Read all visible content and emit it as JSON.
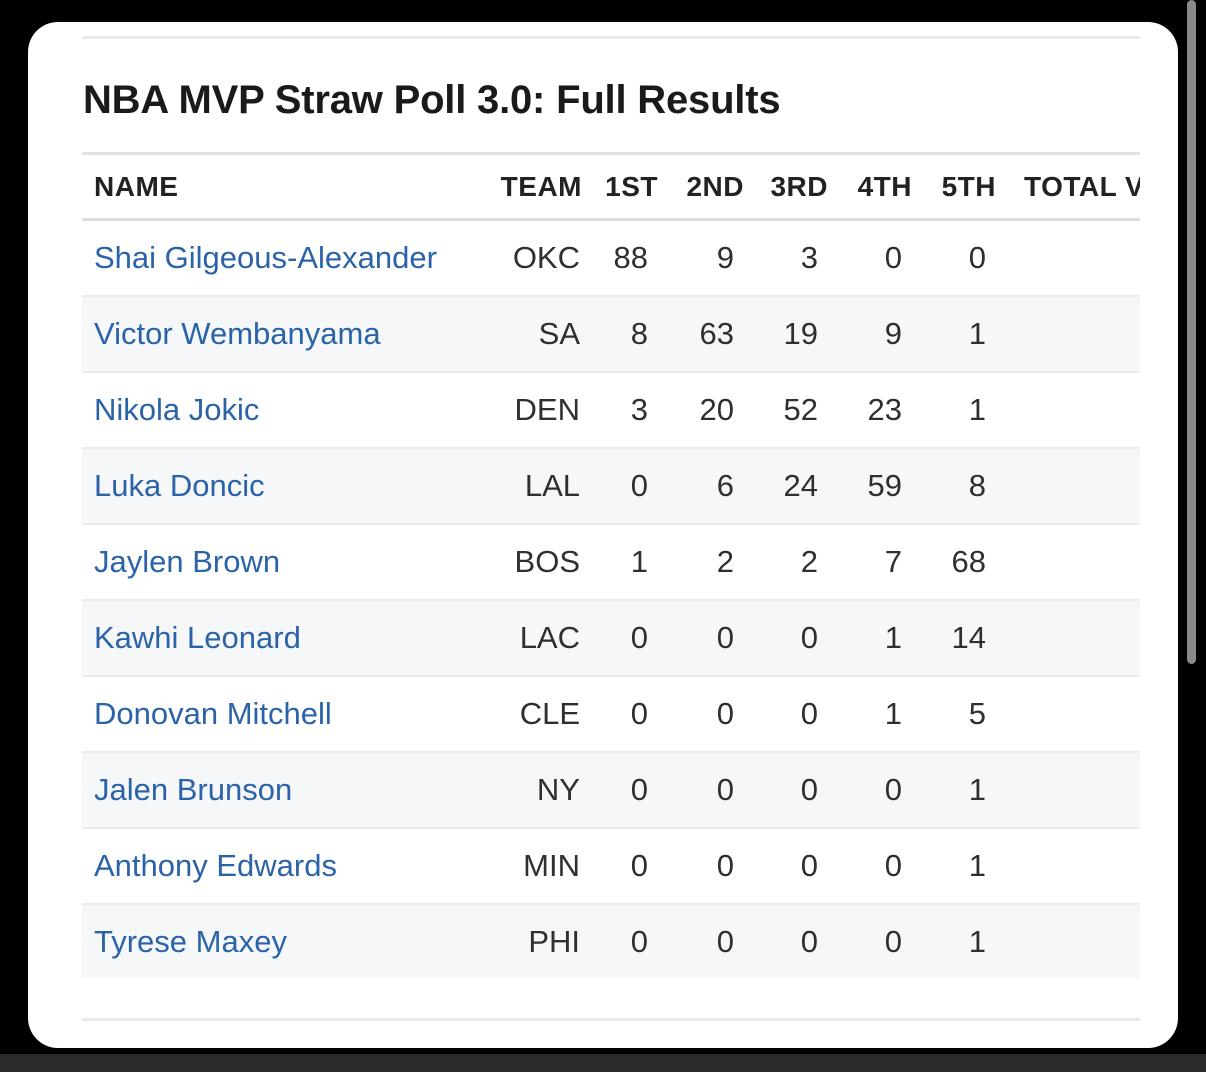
{
  "title": "NBA MVP Straw Poll 3.0: Full Results",
  "table": {
    "headers": {
      "name": "NAME",
      "team": "TEAM",
      "first": "1ST",
      "second": "2ND",
      "third": "3RD",
      "fourth": "4TH",
      "fifth": "5TH",
      "total": "TOTAL V"
    },
    "rows": [
      {
        "name": "Shai Gilgeous-Alexander",
        "team": "OKC",
        "first": "88",
        "second": "9",
        "third": "3",
        "fourth": "0",
        "fifth": "0"
      },
      {
        "name": "Victor Wembanyama",
        "team": "SA",
        "first": "8",
        "second": "63",
        "third": "19",
        "fourth": "9",
        "fifth": "1"
      },
      {
        "name": "Nikola Jokic",
        "team": "DEN",
        "first": "3",
        "second": "20",
        "third": "52",
        "fourth": "23",
        "fifth": "1"
      },
      {
        "name": "Luka Doncic",
        "team": "LAL",
        "first": "0",
        "second": "6",
        "third": "24",
        "fourth": "59",
        "fifth": "8"
      },
      {
        "name": "Jaylen Brown",
        "team": "BOS",
        "first": "1",
        "second": "2",
        "third": "2",
        "fourth": "7",
        "fifth": "68"
      },
      {
        "name": "Kawhi Leonard",
        "team": "LAC",
        "first": "0",
        "second": "0",
        "third": "0",
        "fourth": "1",
        "fifth": "14"
      },
      {
        "name": "Donovan Mitchell",
        "team": "CLE",
        "first": "0",
        "second": "0",
        "third": "0",
        "fourth": "1",
        "fifth": "5"
      },
      {
        "name": "Jalen Brunson",
        "team": "NY",
        "first": "0",
        "second": "0",
        "third": "0",
        "fourth": "0",
        "fifth": "1"
      },
      {
        "name": "Anthony Edwards",
        "team": "MIN",
        "first": "0",
        "second": "0",
        "third": "0",
        "fourth": "0",
        "fifth": "1"
      },
      {
        "name": "Tyrese Maxey",
        "team": "PHI",
        "first": "0",
        "second": "0",
        "third": "0",
        "fourth": "0",
        "fifth": "1"
      }
    ]
  },
  "colors": {
    "link": "#2b63a8",
    "text": "#1a1a1a",
    "stripe": "#f6f7f9",
    "background": "#000000",
    "card": "#ffffff"
  }
}
